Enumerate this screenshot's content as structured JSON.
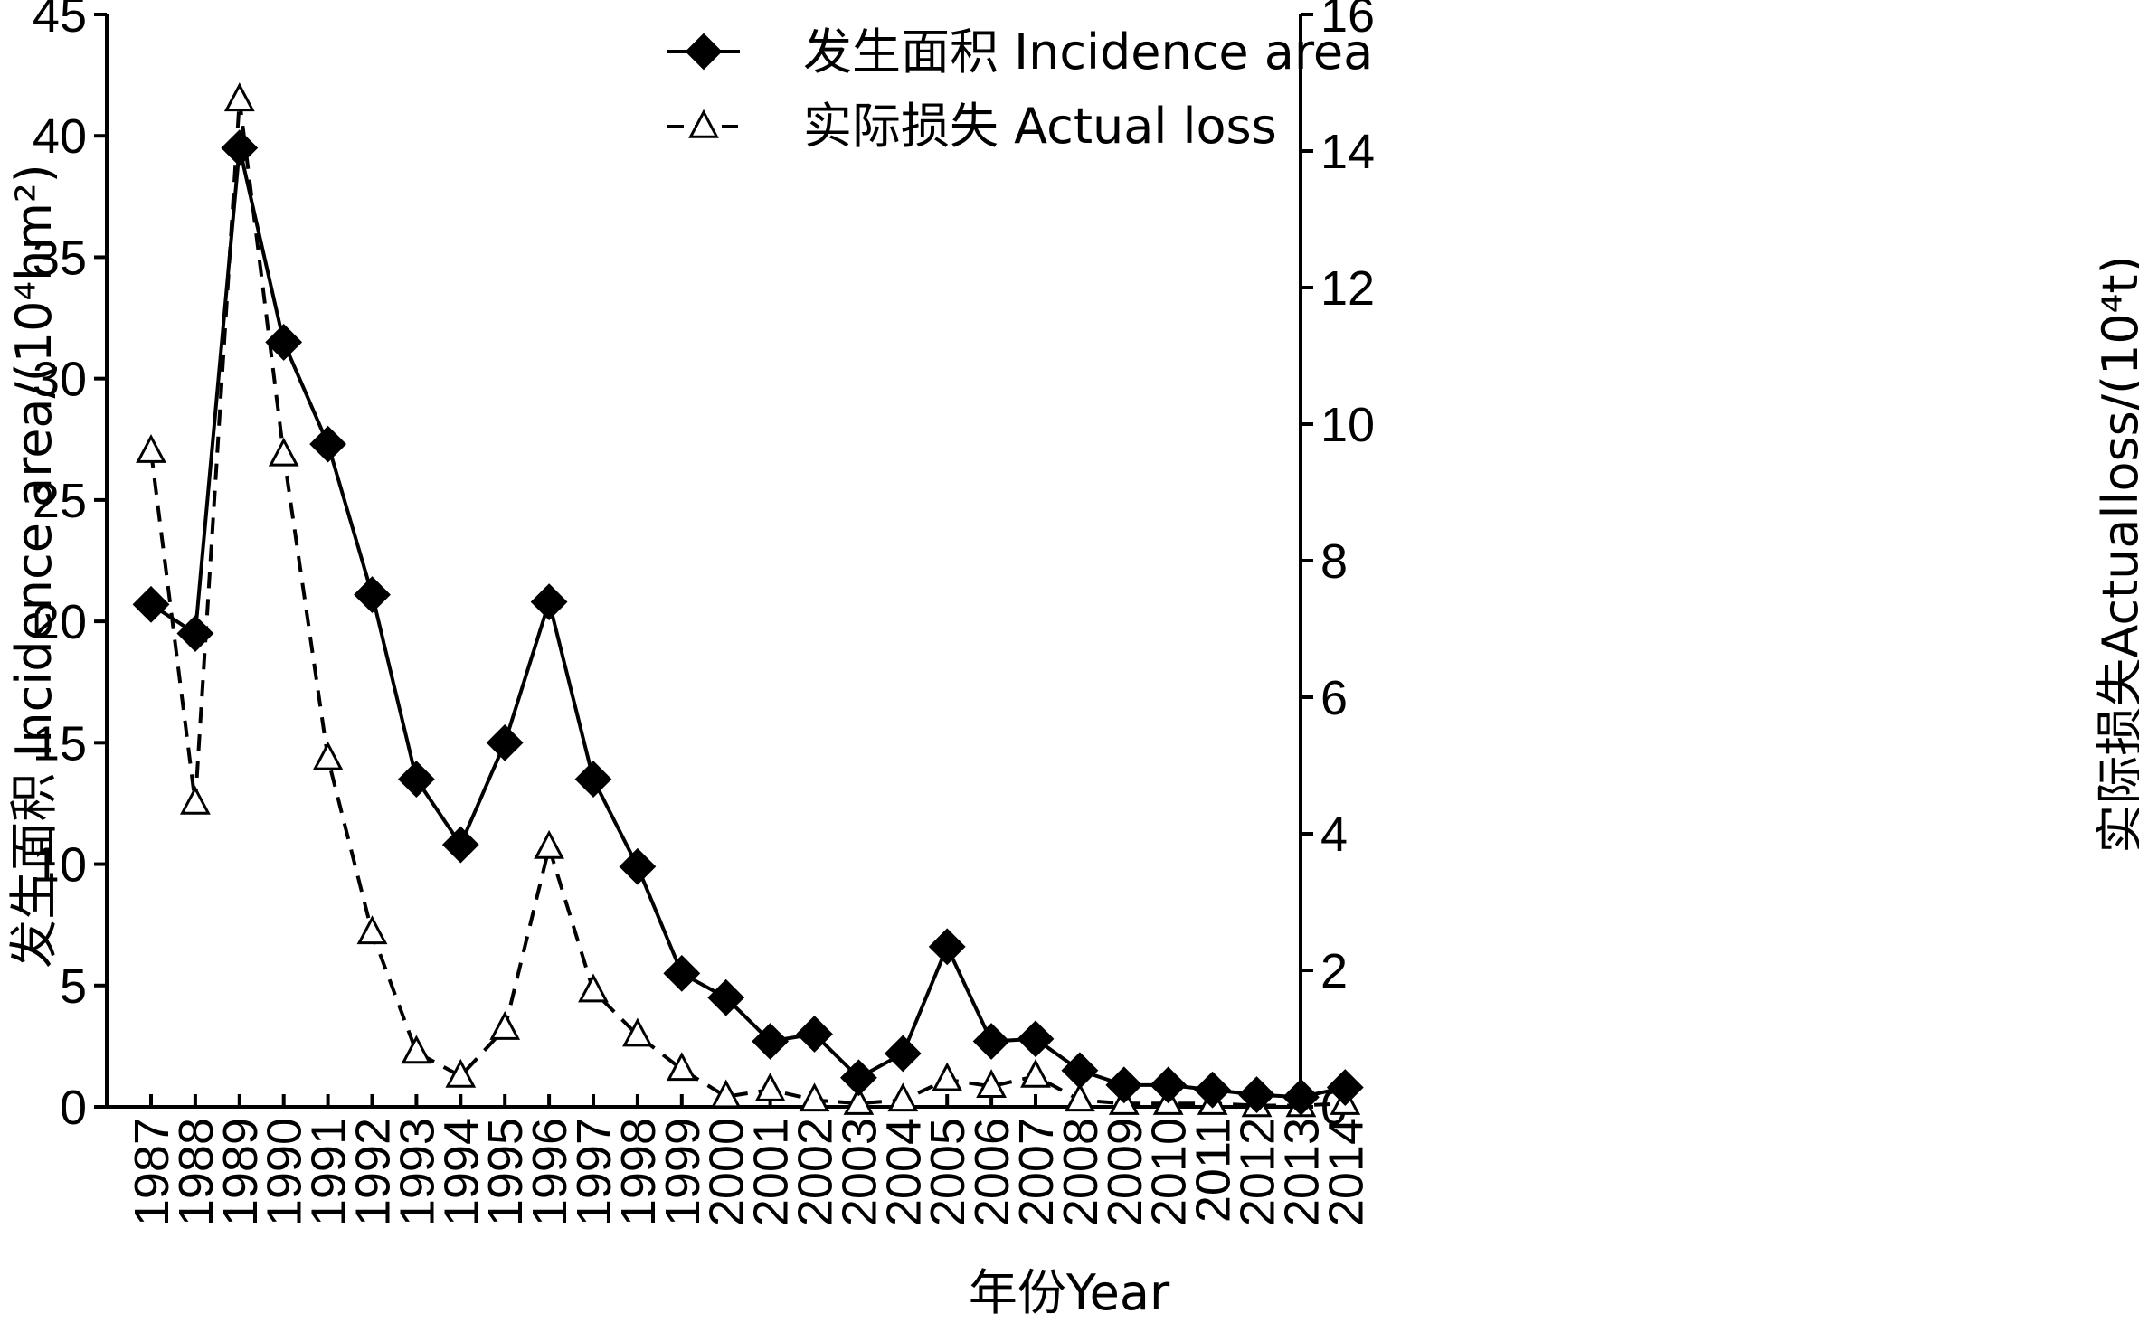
{
  "chart_data": {
    "type": "line",
    "x_label": "年份Year",
    "y_left_label": "发生面积 Incidence area/(10⁴hm²)",
    "y_right_label": "实际损失Actualloss/(10⁴t)",
    "years": [
      "1987",
      "1988",
      "1989",
      "1990",
      "1991",
      "1992",
      "1993",
      "1994",
      "1995",
      "1996",
      "1997",
      "1998",
      "1999",
      "2000",
      "2001",
      "2002",
      "2003",
      "2004",
      "2005",
      "2006",
      "2007",
      "2008",
      "2009",
      "2010",
      "2011",
      "2012",
      "2013",
      "2014"
    ],
    "y_left_range": [
      0,
      45
    ],
    "y_left_ticks": [
      "0",
      "5",
      "10",
      "15",
      "20",
      "25",
      "30",
      "35",
      "40",
      "45"
    ],
    "y_right_range": [
      0,
      16
    ],
    "y_right_ticks": [
      "0",
      "2",
      "4",
      "6",
      "8",
      "10",
      "12",
      "14",
      "16"
    ],
    "series": [
      {
        "name": "发生面积 Incidence area",
        "axis": "left",
        "marker": "diamond",
        "line_style": "solid",
        "color": "#000000",
        "values": [
          20.7,
          19.5,
          39.5,
          31.5,
          27.3,
          21.1,
          13.5,
          10.8,
          15.0,
          20.8,
          13.5,
          9.9,
          5.5,
          4.5,
          2.7,
          3.0,
          1.2,
          2.2,
          6.6,
          2.7,
          2.8,
          1.5,
          0.9,
          0.9,
          0.7,
          0.5,
          0.4,
          0.8
        ]
      },
      {
        "name": "实际损失 Actual loss",
        "axis": "right",
        "marker": "triangle-open",
        "line_style": "dashed",
        "color": "#000000",
        "values": [
          9.6,
          4.45,
          14.75,
          9.55,
          5.1,
          2.55,
          0.8,
          0.45,
          1.15,
          3.8,
          1.7,
          1.05,
          0.55,
          0.15,
          0.25,
          0.1,
          0.05,
          0.1,
          0.4,
          0.3,
          0.45,
          0.1,
          0.05,
          0.05,
          0.05,
          0.02,
          0.02,
          0.05
        ]
      }
    ],
    "legend_position": "top-center"
  }
}
